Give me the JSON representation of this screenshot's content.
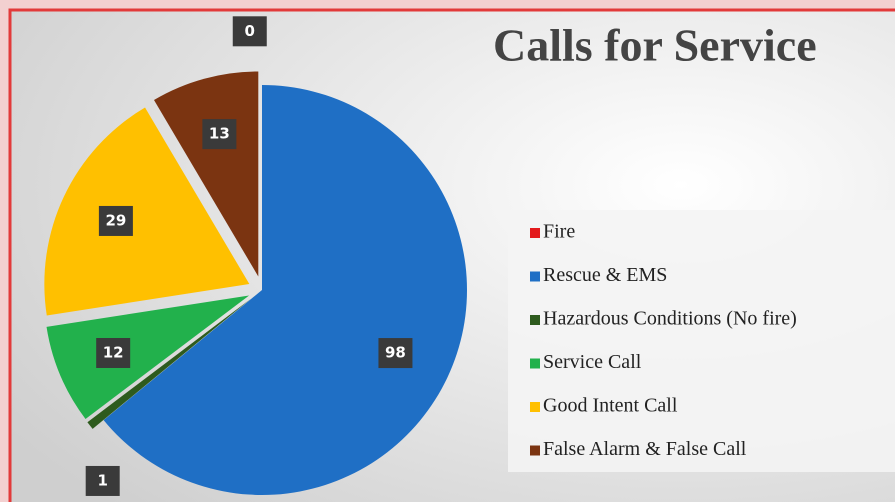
{
  "chart_data": {
    "type": "pie",
    "title": "Calls for Service",
    "categories": [
      "Fire",
      "Rescue & EMS",
      "Hazardous Conditions (No fire)",
      "Service Call",
      "Good Intent Call",
      "False Alarm & False Call"
    ],
    "values": [
      0,
      98,
      1,
      12,
      29,
      13
    ],
    "colors": [
      "#e31a1c",
      "#1f6fc5",
      "#2e5b1e",
      "#22b14c",
      "#ffc000",
      "#7b3411"
    ],
    "legend": "right"
  }
}
